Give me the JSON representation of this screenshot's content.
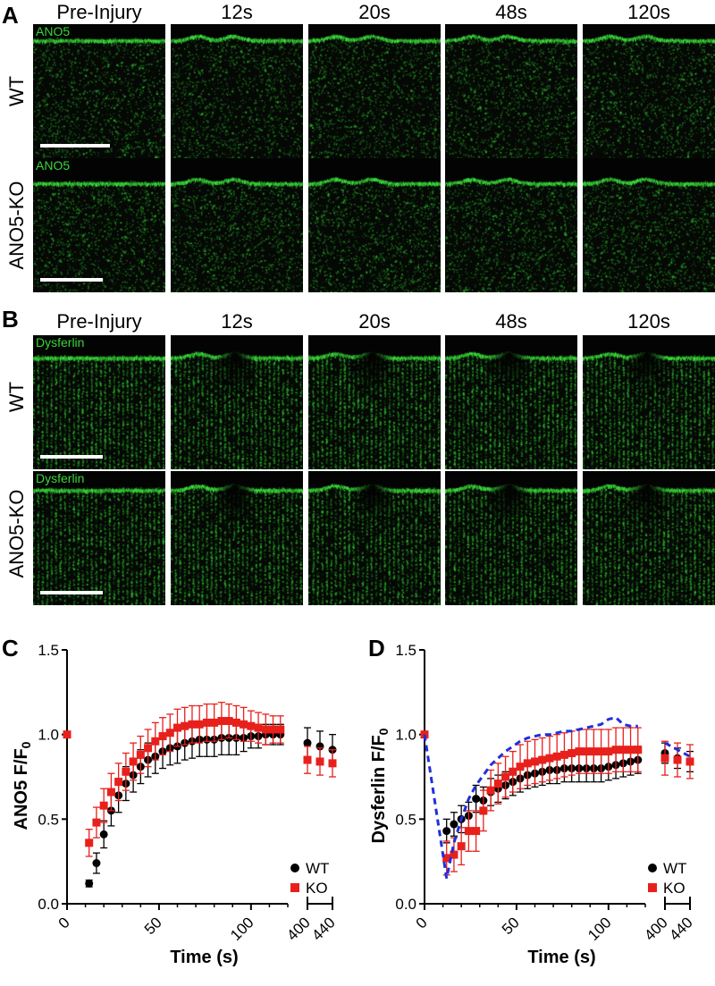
{
  "figure": {
    "panel_letters": {
      "A": "A",
      "B": "B",
      "C": "C",
      "D": "D"
    },
    "panel_A": {
      "columns": [
        "Pre-Injury",
        "12s",
        "20s",
        "48s",
        "120s"
      ],
      "rows": [
        "WT",
        "ANO5-KO"
      ],
      "stain_label": "ANO5",
      "colors": {
        "background": "#050805",
        "signal": "#2fcf2f"
      }
    },
    "panel_B": {
      "columns": [
        "Pre-Injury",
        "12s",
        "20s",
        "48s",
        "120s"
      ],
      "rows": [
        "WT",
        "ANO5-KO"
      ],
      "stain_label": "Dysferlin",
      "colors": {
        "background": "#050805",
        "signal": "#2fcf2f"
      }
    }
  },
  "chart_data": [
    {
      "type": "scatter",
      "panel": "C",
      "ylabel_main": "ANO5 F/F",
      "ylabel_sub": "0",
      "xlabel": "Time (s)",
      "ylim": [
        0,
        1.5
      ],
      "yticks": [
        "0.0",
        "0.5",
        "1.0",
        "1.5"
      ],
      "xticks_main": [
        "0",
        "50",
        "100"
      ],
      "xticks_break": [
        "400",
        "440"
      ],
      "legend_placement": "bottom-right",
      "series": [
        {
          "name": "WT",
          "color": "#000000",
          "marker": "circle",
          "x": [
            0,
            12,
            16,
            20,
            24,
            28,
            32,
            36,
            40,
            44,
            48,
            52,
            56,
            60,
            64,
            68,
            72,
            76,
            80,
            84,
            88,
            92,
            96,
            100,
            104,
            108,
            112,
            116
          ],
          "y": [
            1.0,
            0.12,
            0.24,
            0.41,
            0.55,
            0.64,
            0.71,
            0.76,
            0.81,
            0.85,
            0.87,
            0.9,
            0.92,
            0.93,
            0.95,
            0.96,
            0.97,
            0.97,
            0.97,
            0.98,
            0.98,
            0.98,
            0.98,
            0.99,
            0.99,
            1.0,
            1.0,
            1.0
          ],
          "err": [
            0,
            0.02,
            0.06,
            0.08,
            0.09,
            0.1,
            0.1,
            0.1,
            0.1,
            0.1,
            0.1,
            0.1,
            0.1,
            0.1,
            0.1,
            0.1,
            0.1,
            0.1,
            0.1,
            0.1,
            0.1,
            0.1,
            0.08,
            0.07,
            0.07,
            0.06,
            0.06,
            0.06
          ],
          "x_break": [
            400,
            420,
            440
          ],
          "y_break": [
            0.95,
            0.93,
            0.91
          ],
          "err_break": [
            0.09,
            0.09,
            0.09
          ]
        },
        {
          "name": "KO",
          "color": "#e8201c",
          "marker": "square",
          "x": [
            0,
            12,
            16,
            20,
            24,
            28,
            32,
            36,
            40,
            44,
            48,
            52,
            56,
            60,
            64,
            68,
            72,
            76,
            80,
            84,
            88,
            92,
            96,
            100,
            104,
            108,
            112,
            116
          ],
          "y": [
            1.0,
            0.36,
            0.48,
            0.58,
            0.66,
            0.72,
            0.78,
            0.84,
            0.88,
            0.92,
            0.96,
            0.99,
            1.01,
            1.04,
            1.05,
            1.06,
            1.06,
            1.07,
            1.07,
            1.08,
            1.08,
            1.07,
            1.06,
            1.05,
            1.04,
            1.03,
            1.03,
            1.03
          ],
          "err": [
            0,
            0.08,
            0.09,
            0.1,
            0.11,
            0.11,
            0.11,
            0.11,
            0.11,
            0.11,
            0.11,
            0.11,
            0.11,
            0.11,
            0.11,
            0.11,
            0.11,
            0.11,
            0.11,
            0.11,
            0.1,
            0.1,
            0.1,
            0.09,
            0.09,
            0.09,
            0.08,
            0.08
          ],
          "x_break": [
            400,
            420,
            440
          ],
          "y_break": [
            0.85,
            0.84,
            0.83
          ],
          "err_break": [
            0.08,
            0.08,
            0.08
          ]
        }
      ]
    },
    {
      "type": "scatter",
      "panel": "D",
      "ylabel_main": "Dysferlin F/F",
      "ylabel_sub": "0",
      "xlabel": "Time (s)",
      "ylim": [
        0,
        1.5
      ],
      "yticks": [
        "0.0",
        "0.5",
        "1.0",
        "1.5"
      ],
      "xticks_main": [
        "0",
        "50",
        "100"
      ],
      "xticks_break": [
        "400",
        "440"
      ],
      "legend_placement": "bottom-right",
      "series": [
        {
          "name": "WT",
          "color": "#000000",
          "marker": "circle",
          "x": [
            0,
            12,
            16,
            20,
            24,
            28,
            32,
            36,
            40,
            44,
            48,
            52,
            56,
            60,
            64,
            68,
            72,
            76,
            80,
            84,
            88,
            92,
            96,
            100,
            104,
            108,
            112,
            116
          ],
          "y": [
            1.0,
            0.43,
            0.47,
            0.5,
            0.52,
            0.62,
            0.61,
            0.66,
            0.68,
            0.7,
            0.72,
            0.74,
            0.76,
            0.77,
            0.78,
            0.79,
            0.79,
            0.8,
            0.8,
            0.8,
            0.8,
            0.8,
            0.8,
            0.81,
            0.82,
            0.83,
            0.84,
            0.85
          ],
          "err": [
            0,
            0.07,
            0.07,
            0.08,
            0.08,
            0.08,
            0.08,
            0.08,
            0.08,
            0.08,
            0.08,
            0.08,
            0.08,
            0.08,
            0.08,
            0.08,
            0.08,
            0.08,
            0.08,
            0.08,
            0.08,
            0.08,
            0.08,
            0.08,
            0.08,
            0.08,
            0.08,
            0.08
          ],
          "x_break": [
            400,
            420,
            440
          ],
          "y_break": [
            0.89,
            0.86,
            0.84
          ],
          "err_break": [
            0.06,
            0.06,
            0.06
          ]
        },
        {
          "name": "KO",
          "color": "#e8201c",
          "marker": "square",
          "x": [
            0,
            12,
            16,
            20,
            24,
            28,
            32,
            36,
            40,
            44,
            48,
            52,
            56,
            60,
            64,
            68,
            72,
            76,
            80,
            84,
            88,
            92,
            96,
            100,
            104,
            108,
            112,
            116
          ],
          "y": [
            1.0,
            0.27,
            0.29,
            0.34,
            0.43,
            0.43,
            0.55,
            0.67,
            0.71,
            0.75,
            0.78,
            0.81,
            0.83,
            0.84,
            0.85,
            0.86,
            0.87,
            0.88,
            0.89,
            0.9,
            0.9,
            0.9,
            0.9,
            0.9,
            0.91,
            0.91,
            0.91,
            0.91
          ],
          "err": [
            0,
            0.1,
            0.1,
            0.11,
            0.12,
            0.12,
            0.12,
            0.12,
            0.12,
            0.12,
            0.12,
            0.13,
            0.13,
            0.13,
            0.13,
            0.13,
            0.13,
            0.13,
            0.13,
            0.13,
            0.13,
            0.13,
            0.13,
            0.13,
            0.13,
            0.13,
            0.13,
            0.13
          ],
          "x_break": [
            400,
            420,
            440
          ],
          "y_break": [
            0.86,
            0.85,
            0.84
          ],
          "err_break": [
            0.1,
            0.1,
            0.1
          ]
        },
        {
          "name": "",
          "color": "#1f2fdc",
          "style": "dashed",
          "x": [
            0,
            12,
            16,
            20,
            24,
            28,
            32,
            36,
            40,
            44,
            48,
            52,
            56,
            60,
            64,
            68,
            72,
            76,
            80,
            84,
            88,
            92,
            96,
            100,
            104,
            108,
            112,
            116
          ],
          "y": [
            1.0,
            0.15,
            0.36,
            0.5,
            0.62,
            0.7,
            0.76,
            0.82,
            0.86,
            0.9,
            0.93,
            0.96,
            0.98,
            0.99,
            1.0,
            1.0,
            1.01,
            1.02,
            1.02,
            1.03,
            1.04,
            1.05,
            1.06,
            1.09,
            1.1,
            1.06,
            1.05,
            1.05
          ],
          "x_break": [
            400,
            420,
            440
          ],
          "y_break": [
            0.95,
            0.91,
            0.87
          ]
        }
      ]
    }
  ]
}
